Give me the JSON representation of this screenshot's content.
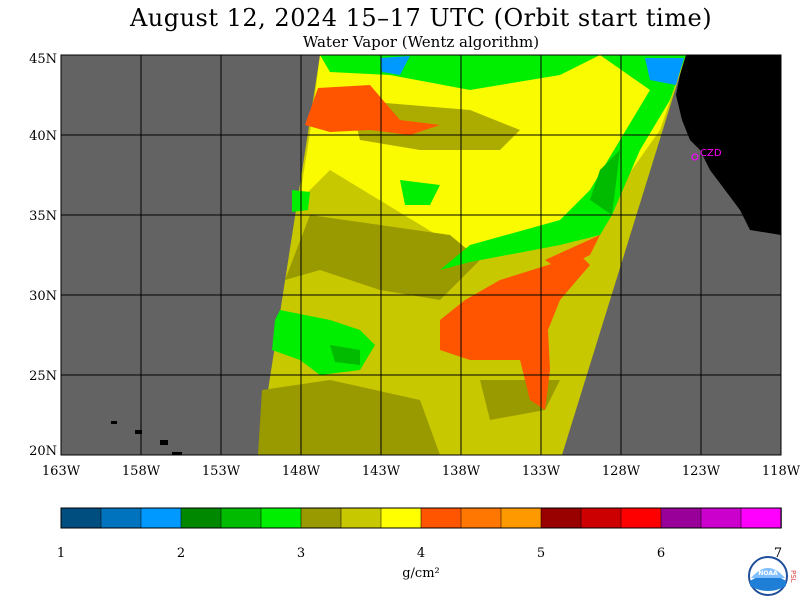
{
  "title": "August 12, 2024   15–17 UTC  (Orbit start time)",
  "subtitle": "Water Vapor (Wentz algorithm)",
  "map": {
    "lat_labels": [
      "45N",
      "40N",
      "35N",
      "30N",
      "25N",
      "20N"
    ],
    "lon_labels": [
      "163W",
      "158W",
      "153W",
      "148W",
      "143W",
      "138W",
      "133W",
      "128W",
      "123W",
      "118W"
    ],
    "station_label": "CZD",
    "colors": {
      "ocean": "#636363",
      "land": "#000000",
      "grid": "#000000",
      "station": "#ff00ff"
    }
  },
  "colorbar": {
    "tick_labels": [
      "1",
      "2",
      "3",
      "4",
      "5",
      "6",
      "7"
    ],
    "unit_label": "g/cm²",
    "colors": [
      "#004d7f",
      "#0073bf",
      "#0099ff",
      "#008800",
      "#00bb00",
      "#00ee00",
      "#999900",
      "#c8c800",
      "#ffff00",
      "#ff5500",
      "#ff7700",
      "#ff9900",
      "#990000",
      "#cc0000",
      "#ff0000",
      "#990099",
      "#cc00cc",
      "#ff00ff"
    ]
  },
  "logo": {
    "agency": "NOAA",
    "side_text": "PSL"
  }
}
